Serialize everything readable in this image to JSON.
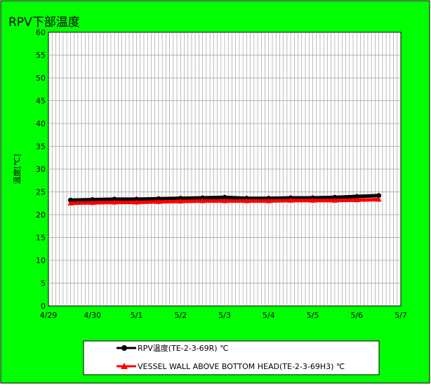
{
  "chart_data": {
    "type": "line",
    "title": "RPV下部温度",
    "ylabel": "温度[℃]",
    "xlabel": "",
    "ylim": [
      0,
      60
    ],
    "yticks": [
      0,
      5,
      10,
      15,
      20,
      25,
      30,
      35,
      40,
      45,
      50,
      55,
      60
    ],
    "xlim": [
      "4/29",
      "5/7"
    ],
    "xtick_labels": [
      "4/29",
      "4/30",
      "5/1",
      "5/2",
      "5/3",
      "5/4",
      "5/5",
      "5/6",
      "5/7"
    ],
    "grid": true,
    "background_color": "#00ff00",
    "plot_background_color": "#ffffff",
    "legend_position": "bottom",
    "series": [
      {
        "name": "RPV温度(TE-2-3-69R) ℃",
        "color": "#000000",
        "marker": "circle",
        "x": [
          "4/29 12:00",
          "4/30 00:00",
          "4/30 12:00",
          "5/1 00:00",
          "5/1 12:00",
          "5/2 00:00",
          "5/2 12:00",
          "5/3 00:00",
          "5/3 12:00",
          "5/4 00:00",
          "5/4 12:00",
          "5/5 00:00",
          "5/5 12:00",
          "5/6 00:00",
          "5/6 12:00"
        ],
        "values": [
          23.2,
          23.3,
          23.4,
          23.4,
          23.5,
          23.6,
          23.7,
          23.8,
          23.6,
          23.6,
          23.7,
          23.7,
          23.8,
          24.0,
          24.2
        ]
      },
      {
        "name": "VESSEL WALL ABOVE BOTTOM HEAD(TE-2-3-69H3) ℃",
        "color": "#ff0000",
        "marker": "triangle",
        "x": [
          "4/29 12:00",
          "4/30 00:00",
          "4/30 12:00",
          "5/1 00:00",
          "5/1 12:00",
          "5/2 00:00",
          "5/2 12:00",
          "5/3 00:00",
          "5/3 12:00",
          "5/4 00:00",
          "5/4 12:00",
          "5/5 00:00",
          "5/5 12:00",
          "5/6 00:00",
          "5/6 12:00"
        ],
        "values": [
          22.5,
          22.6,
          22.7,
          22.7,
          22.8,
          22.9,
          23.0,
          23.0,
          23.0,
          23.0,
          23.1,
          23.1,
          23.1,
          23.2,
          23.3
        ]
      }
    ]
  }
}
